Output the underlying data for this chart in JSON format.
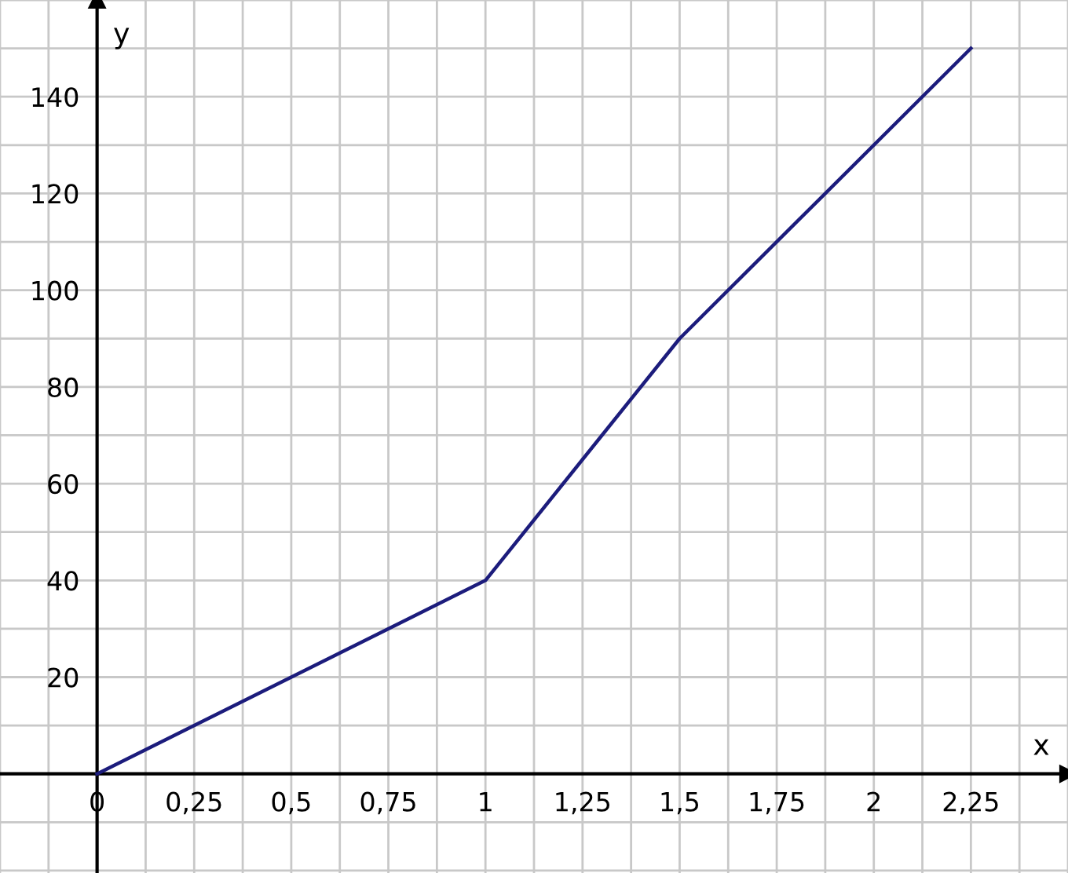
{
  "chart_data": {
    "type": "line",
    "xlabel": "x",
    "ylabel": "y",
    "x": [
      0,
      1,
      1.5,
      2.25
    ],
    "series": [
      {
        "color": "#1c1c7c",
        "values": [
          0,
          40,
          90,
          150
        ]
      }
    ],
    "xlim": [
      -0.25,
      2.5
    ],
    "ylim": [
      -20.5,
      160
    ],
    "xticks": [
      {
        "value": -0.25,
        "label": null
      },
      {
        "value": -0.125,
        "label": null
      },
      {
        "value": 0,
        "label": "0"
      },
      {
        "value": 0.125,
        "label": null
      },
      {
        "value": 0.25,
        "label": "0,25"
      },
      {
        "value": 0.375,
        "label": null
      },
      {
        "value": 0.5,
        "label": "0,5"
      },
      {
        "value": 0.625,
        "label": null
      },
      {
        "value": 0.75,
        "label": "0,75"
      },
      {
        "value": 0.875,
        "label": null
      },
      {
        "value": 1,
        "label": "1"
      },
      {
        "value": 1.125,
        "label": null
      },
      {
        "value": 1.25,
        "label": "1,25"
      },
      {
        "value": 1.375,
        "label": null
      },
      {
        "value": 1.5,
        "label": "1,5"
      },
      {
        "value": 1.625,
        "label": null
      },
      {
        "value": 1.75,
        "label": "1,75"
      },
      {
        "value": 1.875,
        "label": null
      },
      {
        "value": 2,
        "label": "2"
      },
      {
        "value": 2.125,
        "label": null
      },
      {
        "value": 2.25,
        "label": "2,25"
      },
      {
        "value": 2.375,
        "label": null
      },
      {
        "value": 2.5,
        "label": null
      }
    ],
    "yticks": [
      {
        "value": -20,
        "label": null
      },
      {
        "value": -10,
        "label": null
      },
      {
        "value": 10,
        "label": null
      },
      20,
      {
        "value": 30,
        "label": null
      },
      40,
      {
        "value": 50,
        "label": null
      },
      60,
      {
        "value": 70,
        "label": null
      },
      80,
      {
        "value": 90,
        "label": null
      },
      100,
      {
        "value": 110,
        "label": null
      },
      120,
      {
        "value": 130,
        "label": null
      },
      140,
      {
        "value": 150,
        "label": null
      },
      {
        "value": 160,
        "label": null
      }
    ],
    "grid": true,
    "marker": "none",
    "line_style": "solid"
  }
}
